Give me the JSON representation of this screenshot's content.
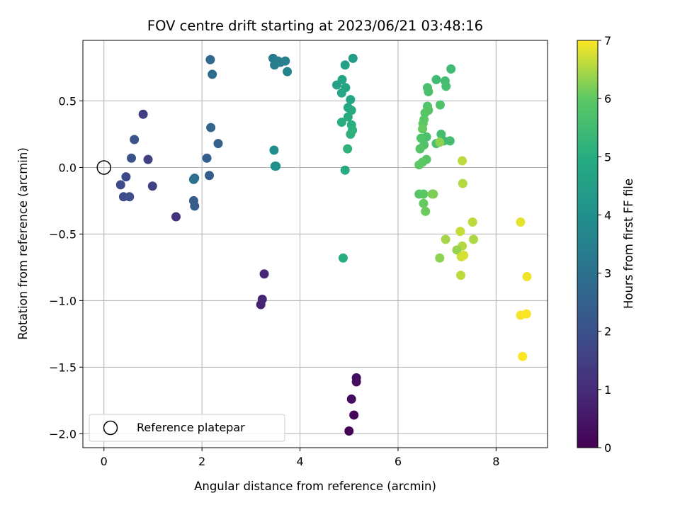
{
  "chart_data": {
    "type": "scatter",
    "title": "FOV centre drift starting at 2023/06/21 03:48:16",
    "xlabel": "Angular distance from reference (arcmin)",
    "ylabel": "Rotation from reference (arcmin)",
    "xlim": [
      -0.43,
      9.05
    ],
    "ylim": [
      -2.105,
      0.955
    ],
    "xticks": [
      0,
      2,
      4,
      6,
      8
    ],
    "xtick_labels": [
      "0",
      "2",
      "4",
      "6",
      "8"
    ],
    "yticks": [
      0.5,
      0.0,
      -0.5,
      -1.0,
      -1.5,
      -2.0
    ],
    "ytick_labels": [
      "0.5",
      "0.0",
      "−0.5",
      "−1.0",
      "−1.5",
      "−2.0"
    ],
    "grid": true,
    "colormap": "viridis",
    "colorbar": {
      "label": "Hours from first FF file",
      "range": [
        0,
        7
      ],
      "ticks": [
        0,
        1,
        2,
        3,
        4,
        5,
        6,
        7
      ],
      "tick_labels": [
        "0",
        "1",
        "2",
        "3",
        "4",
        "5",
        "6",
        "7"
      ]
    },
    "legend": {
      "placement": "lower-left",
      "entries": [
        "Reference platepar"
      ]
    },
    "reference_point": {
      "x": 0.0,
      "y": 0.0,
      "label": "Reference platepar"
    },
    "points": [
      {
        "x": 5.0,
        "y": -1.98,
        "hours": 0.05
      },
      {
        "x": 5.1,
        "y": -1.86,
        "hours": 0.15
      },
      {
        "x": 5.05,
        "y": -1.74,
        "hours": 0.25
      },
      {
        "x": 5.15,
        "y": -1.61,
        "hours": 0.3
      },
      {
        "x": 5.15,
        "y": -1.58,
        "hours": 0.35
      },
      {
        "x": 3.2,
        "y": -1.03,
        "hours": 0.8
      },
      {
        "x": 3.23,
        "y": -0.99,
        "hours": 0.85
      },
      {
        "x": 3.27,
        "y": -0.8,
        "hours": 0.9
      },
      {
        "x": 1.47,
        "y": -0.37,
        "hours": 1.2
      },
      {
        "x": 0.8,
        "y": 0.4,
        "hours": 1.5
      },
      {
        "x": 0.9,
        "y": 0.06,
        "hours": 1.55
      },
      {
        "x": 0.99,
        "y": -0.14,
        "hours": 1.6
      },
      {
        "x": 0.45,
        "y": -0.07,
        "hours": 1.8
      },
      {
        "x": 0.34,
        "y": -0.13,
        "hours": 1.85
      },
      {
        "x": 0.4,
        "y": -0.22,
        "hours": 1.9
      },
      {
        "x": 0.52,
        "y": -0.22,
        "hours": 1.95
      },
      {
        "x": 0.56,
        "y": 0.07,
        "hours": 2.05
      },
      {
        "x": 0.62,
        "y": 0.21,
        "hours": 2.1
      },
      {
        "x": 1.83,
        "y": -0.25,
        "hours": 2.3
      },
      {
        "x": 1.85,
        "y": -0.29,
        "hours": 2.35
      },
      {
        "x": 2.15,
        "y": -0.06,
        "hours": 2.4
      },
      {
        "x": 2.1,
        "y": 0.07,
        "hours": 2.45
      },
      {
        "x": 2.18,
        "y": 0.3,
        "hours": 2.6
      },
      {
        "x": 2.33,
        "y": 0.18,
        "hours": 2.55
      },
      {
        "x": 1.85,
        "y": -0.08,
        "hours": 2.9
      },
      {
        "x": 1.83,
        "y": -0.09,
        "hours": 2.95
      },
      {
        "x": 2.17,
        "y": 0.81,
        "hours": 2.75
      },
      {
        "x": 2.21,
        "y": 0.7,
        "hours": 2.85
      },
      {
        "x": 3.45,
        "y": 0.82,
        "hours": 3.3
      },
      {
        "x": 3.48,
        "y": 0.77,
        "hours": 3.35
      },
      {
        "x": 3.55,
        "y": 0.8,
        "hours": 3.4
      },
      {
        "x": 3.6,
        "y": 0.79,
        "hours": 3.45
      },
      {
        "x": 3.7,
        "y": 0.8,
        "hours": 3.5
      },
      {
        "x": 3.74,
        "y": 0.72,
        "hours": 3.55
      },
      {
        "x": 3.47,
        "y": 0.13,
        "hours": 3.9
      },
      {
        "x": 3.49,
        "y": 0.01,
        "hours": 3.95
      },
      {
        "x": 3.51,
        "y": 0.01,
        "hours": 4.0
      },
      {
        "x": 5.08,
        "y": 0.82,
        "hours": 4.45
      },
      {
        "x": 4.92,
        "y": 0.77,
        "hours": 4.5
      },
      {
        "x": 4.75,
        "y": 0.62,
        "hours": 4.6
      },
      {
        "x": 4.86,
        "y": 0.66,
        "hours": 4.65
      },
      {
        "x": 4.93,
        "y": 0.6,
        "hours": 4.7
      },
      {
        "x": 4.85,
        "y": 0.56,
        "hours": 4.75
      },
      {
        "x": 5.03,
        "y": 0.51,
        "hours": 4.8
      },
      {
        "x": 4.98,
        "y": 0.45,
        "hours": 4.85
      },
      {
        "x": 5.05,
        "y": 0.43,
        "hours": 4.9
      },
      {
        "x": 4.98,
        "y": 0.38,
        "hours": 4.95
      },
      {
        "x": 4.85,
        "y": 0.34,
        "hours": 5.0
      },
      {
        "x": 5.05,
        "y": 0.32,
        "hours": 5.05
      },
      {
        "x": 5.07,
        "y": 0.28,
        "hours": 5.1
      },
      {
        "x": 5.03,
        "y": 0.25,
        "hours": 5.15
      },
      {
        "x": 4.97,
        "y": 0.14,
        "hours": 5.2
      },
      {
        "x": 4.92,
        "y": -0.02,
        "hours": 4.9
      },
      {
        "x": 4.88,
        "y": -0.68,
        "hours": 5.0
      },
      {
        "x": 7.08,
        "y": 0.74,
        "hours": 5.45
      },
      {
        "x": 6.78,
        "y": 0.66,
        "hours": 5.5
      },
      {
        "x": 6.96,
        "y": 0.65,
        "hours": 5.55
      },
      {
        "x": 6.98,
        "y": 0.61,
        "hours": 5.6
      },
      {
        "x": 6.6,
        "y": 0.6,
        "hours": 5.65
      },
      {
        "x": 6.62,
        "y": 0.57,
        "hours": 5.7
      },
      {
        "x": 6.86,
        "y": 0.47,
        "hours": 5.75
      },
      {
        "x": 6.6,
        "y": 0.46,
        "hours": 5.8
      },
      {
        "x": 6.62,
        "y": 0.43,
        "hours": 5.85
      },
      {
        "x": 6.55,
        "y": 0.41,
        "hours": 5.9
      },
      {
        "x": 6.53,
        "y": 0.36,
        "hours": 5.95
      },
      {
        "x": 6.51,
        "y": 0.33,
        "hours": 6.0
      },
      {
        "x": 6.5,
        "y": 0.29,
        "hours": 6.05
      },
      {
        "x": 6.88,
        "y": 0.25,
        "hours": 5.6
      },
      {
        "x": 6.58,
        "y": 0.23,
        "hours": 5.7
      },
      {
        "x": 6.47,
        "y": 0.22,
        "hours": 5.8
      },
      {
        "x": 6.93,
        "y": 0.2,
        "hours": 5.5
      },
      {
        "x": 7.06,
        "y": 0.2,
        "hours": 5.55
      },
      {
        "x": 6.78,
        "y": 0.18,
        "hours": 5.65
      },
      {
        "x": 6.85,
        "y": 0.19,
        "hours": 6.3
      },
      {
        "x": 6.53,
        "y": 0.17,
        "hours": 5.75
      },
      {
        "x": 6.45,
        "y": 0.14,
        "hours": 5.85
      },
      {
        "x": 6.58,
        "y": 0.06,
        "hours": 5.9
      },
      {
        "x": 6.5,
        "y": 0.04,
        "hours": 5.95
      },
      {
        "x": 6.43,
        "y": 0.02,
        "hours": 6.0
      },
      {
        "x": 6.43,
        "y": -0.2,
        "hours": 5.9
      },
      {
        "x": 6.52,
        "y": -0.2,
        "hours": 5.95
      },
      {
        "x": 6.52,
        "y": -0.27,
        "hours": 6.05
      },
      {
        "x": 6.56,
        "y": -0.33,
        "hours": 6.1
      },
      {
        "x": 6.7,
        "y": -0.2,
        "hours": 6.15
      },
      {
        "x": 6.72,
        "y": -0.2,
        "hours": 6.2
      },
      {
        "x": 7.31,
        "y": 0.05,
        "hours": 6.6
      },
      {
        "x": 7.32,
        "y": -0.12,
        "hours": 6.55
      },
      {
        "x": 7.52,
        "y": -0.41,
        "hours": 6.6
      },
      {
        "x": 7.27,
        "y": -0.48,
        "hours": 6.65
      },
      {
        "x": 6.97,
        "y": -0.54,
        "hours": 6.45
      },
      {
        "x": 7.54,
        "y": -0.54,
        "hours": 6.5
      },
      {
        "x": 7.31,
        "y": -0.59,
        "hours": 6.55
      },
      {
        "x": 7.2,
        "y": -0.62,
        "hours": 6.35
      },
      {
        "x": 7.29,
        "y": -0.67,
        "hours": 6.7
      },
      {
        "x": 7.34,
        "y": -0.66,
        "hours": 6.75
      },
      {
        "x": 6.85,
        "y": -0.68,
        "hours": 6.3
      },
      {
        "x": 7.28,
        "y": -0.81,
        "hours": 6.6
      },
      {
        "x": 8.5,
        "y": -0.41,
        "hours": 6.85
      },
      {
        "x": 8.63,
        "y": -0.82,
        "hours": 6.9
      },
      {
        "x": 8.5,
        "y": -1.11,
        "hours": 6.95
      },
      {
        "x": 8.62,
        "y": -1.1,
        "hours": 6.98
      },
      {
        "x": 8.54,
        "y": -1.42,
        "hours": 7.0
      }
    ]
  }
}
